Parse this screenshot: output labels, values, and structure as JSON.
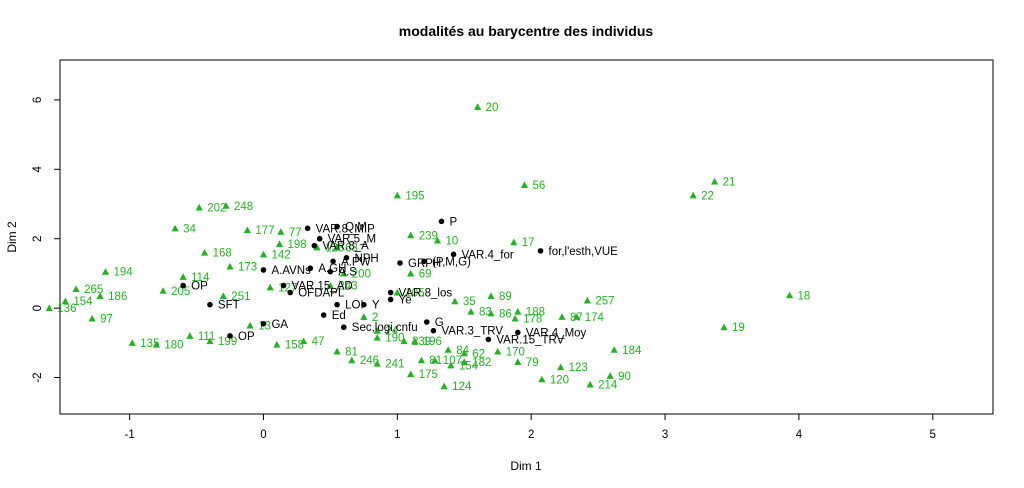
{
  "chart_data": {
    "type": "scatter",
    "title": "modalités au barycentre des individus",
    "xlabel": "Dim 1",
    "ylabel": "Dim 2",
    "xlim": [
      -1.52,
      5.45
    ],
    "ylim": [
      -3.05,
      7.15
    ],
    "xticks": [
      -1,
      0,
      1,
      2,
      3,
      4,
      5
    ],
    "yticks": [
      -2,
      0,
      2,
      4,
      6
    ],
    "grid": false,
    "colors": {
      "individuals": "#22b322",
      "modalities": "#000000"
    },
    "series": [
      {
        "marker": "triangle",
        "points": [
          {
            "x": 1.6,
            "y": 5.8,
            "label": "20"
          },
          {
            "x": 3.37,
            "y": 3.65,
            "label": "21"
          },
          {
            "x": 3.21,
            "y": 3.25,
            "label": "22"
          },
          {
            "x": 1.95,
            "y": 3.55,
            "label": "56"
          },
          {
            "x": 1.0,
            "y": 3.25,
            "label": "195"
          },
          {
            "x": 3.93,
            "y": 0.37,
            "label": "18"
          },
          {
            "x": 3.44,
            "y": -0.55,
            "label": "19"
          },
          {
            "x": 2.42,
            "y": 0.22,
            "label": "257"
          },
          {
            "x": 2.62,
            "y": -1.2,
            "label": "184"
          },
          {
            "x": 2.59,
            "y": -1.95,
            "label": "90"
          },
          {
            "x": 2.44,
            "y": -2.2,
            "label": "214"
          },
          {
            "x": 2.08,
            "y": -2.05,
            "label": "120"
          },
          {
            "x": 2.22,
            "y": -1.7,
            "label": "123"
          },
          {
            "x": 1.35,
            "y": -2.25,
            "label": "124"
          },
          {
            "x": 1.9,
            "y": -1.55,
            "label": "79"
          },
          {
            "x": 2.23,
            "y": -0.25,
            "label": "87"
          },
          {
            "x": 2.34,
            "y": -0.25,
            "label": "174"
          },
          {
            "x": 1.88,
            "y": -0.3,
            "label": "178"
          },
          {
            "x": 1.9,
            "y": -0.1,
            "label": "188"
          },
          {
            "x": 1.7,
            "y": -0.15,
            "label": "86"
          },
          {
            "x": 1.7,
            "y": 0.35,
            "label": "89"
          },
          {
            "x": 1.43,
            "y": 0.2,
            "label": "35"
          },
          {
            "x": 1.55,
            "y": -0.1,
            "label": "83"
          },
          {
            "x": 1.87,
            "y": 1.9,
            "label": "17"
          },
          {
            "x": 1.3,
            "y": 1.95,
            "label": "10"
          },
          {
            "x": 1.1,
            "y": 2.1,
            "label": "239"
          },
          {
            "x": -0.48,
            "y": 2.9,
            "label": "202"
          },
          {
            "x": -0.28,
            "y": 2.95,
            "label": "248"
          },
          {
            "x": -0.66,
            "y": 2.3,
            "label": "34"
          },
          {
            "x": -0.12,
            "y": 2.25,
            "label": "177"
          },
          {
            "x": 0.13,
            "y": 2.2,
            "label": "77"
          },
          {
            "x": 0.12,
            "y": 1.85,
            "label": "198"
          },
          {
            "x": -0.44,
            "y": 1.6,
            "label": "168"
          },
          {
            "x": 0.0,
            "y": 1.55,
            "label": "142"
          },
          {
            "x": -1.18,
            "y": 1.05,
            "label": "194"
          },
          {
            "x": -0.25,
            "y": 1.2,
            "label": "173"
          },
          {
            "x": -1.4,
            "y": 0.55,
            "label": "265"
          },
          {
            "x": -1.48,
            "y": 0.2,
            "label": "154"
          },
          {
            "x": -1.22,
            "y": 0.35,
            "label": "186"
          },
          {
            "x": -1.28,
            "y": -0.3,
            "label": "97"
          },
          {
            "x": -1.6,
            "y": 0.0,
            "label": "136"
          },
          {
            "x": -0.98,
            "y": -1.0,
            "label": "135"
          },
          {
            "x": -0.8,
            "y": -1.05,
            "label": "180"
          },
          {
            "x": -0.4,
            "y": -0.95,
            "label": "199"
          },
          {
            "x": 0.1,
            "y": -1.05,
            "label": "158"
          },
          {
            "x": 0.3,
            "y": -0.95,
            "label": "47"
          },
          {
            "x": 0.55,
            "y": -1.25,
            "label": "81"
          },
          {
            "x": 0.66,
            "y": -1.5,
            "label": "246"
          },
          {
            "x": 0.85,
            "y": -1.6,
            "label": "241"
          },
          {
            "x": 0.85,
            "y": -0.85,
            "label": "190"
          },
          {
            "x": 1.1,
            "y": -1.9,
            "label": "175"
          },
          {
            "x": 1.18,
            "y": -1.5,
            "label": "81"
          },
          {
            "x": 1.28,
            "y": -1.5,
            "label": "107"
          },
          {
            "x": 1.4,
            "y": -1.65,
            "label": "154"
          },
          {
            "x": 1.5,
            "y": -1.55,
            "label": "182"
          },
          {
            "x": 1.38,
            "y": -1.2,
            "label": "84"
          },
          {
            "x": 1.5,
            "y": -1.3,
            "label": "62"
          },
          {
            "x": 1.75,
            "y": -1.25,
            "label": "170"
          },
          {
            "x": 1.05,
            "y": -0.95,
            "label": "239"
          },
          {
            "x": 1.13,
            "y": -0.95,
            "label": "196"
          },
          {
            "x": 1.0,
            "y": 0.45,
            "label": "105"
          },
          {
            "x": 1.1,
            "y": 1.0,
            "label": "69"
          },
          {
            "x": 0.5,
            "y": 0.65,
            "label": "243"
          },
          {
            "x": 0.75,
            "y": -0.25,
            "label": "2"
          },
          {
            "x": 0.85,
            "y": -0.65,
            "label": "24"
          },
          {
            "x": 0.4,
            "y": 1.75,
            "label": "128"
          },
          {
            "x": 0.55,
            "y": 1.75,
            "label": "63"
          },
          {
            "x": 0.05,
            "y": 0.6,
            "label": "127"
          },
          {
            "x": 0.6,
            "y": 1.0,
            "label": "200"
          },
          {
            "x": -0.6,
            "y": 0.9,
            "label": "114"
          },
          {
            "x": -0.75,
            "y": 0.5,
            "label": "205"
          },
          {
            "x": -0.3,
            "y": 0.35,
            "label": "251"
          },
          {
            "x": -0.1,
            "y": -0.5,
            "label": "13"
          },
          {
            "x": -0.55,
            "y": -0.8,
            "label": "111"
          }
        ]
      },
      {
        "marker": "dot",
        "points": [
          {
            "x": 1.33,
            "y": 2.5,
            "label": "P"
          },
          {
            "x": 0.33,
            "y": 2.3,
            "label": "VAR.8_MIP"
          },
          {
            "x": 0.55,
            "y": 2.35,
            "label": "Q.M"
          },
          {
            "x": 0.42,
            "y": 2.0,
            "label": "VAR.5_M"
          },
          {
            "x": 0.38,
            "y": 1.8,
            "label": "VAR.8_A"
          },
          {
            "x": 0.62,
            "y": 1.45,
            "label": "NPH"
          },
          {
            "x": 0.52,
            "y": 1.35,
            "label": "A.PW"
          },
          {
            "x": 1.02,
            "y": 1.3,
            "label": "GRPH"
          },
          {
            "x": 1.2,
            "y": 1.35,
            "label": "(P,M,G)"
          },
          {
            "x": 1.42,
            "y": 1.55,
            "label": "VAR.4_for"
          },
          {
            "x": 2.07,
            "y": 1.65,
            "label": "for,l'esth,VUE"
          },
          {
            "x": 0.0,
            "y": 1.1,
            "label": "A.AVNs"
          },
          {
            "x": 0.35,
            "y": 1.15,
            "label": "A.GH"
          },
          {
            "x": 0.5,
            "y": 1.05,
            "label": "A.S"
          },
          {
            "x": 0.15,
            "y": 0.65,
            "label": "VAR.15_AD"
          },
          {
            "x": 0.95,
            "y": 0.45,
            "label": "VAR.8_los"
          },
          {
            "x": 0.95,
            "y": 0.25,
            "label": "Ye"
          },
          {
            "x": 0.75,
            "y": 0.1,
            "label": "Y"
          },
          {
            "x": 0.55,
            "y": 0.1,
            "label": "LOI"
          },
          {
            "x": 0.45,
            "y": -0.2,
            "label": "Ed"
          },
          {
            "x": 0.6,
            "y": -0.55,
            "label": "Sec,logi,cnfu"
          },
          {
            "x": 1.22,
            "y": -0.4,
            "label": "G"
          },
          {
            "x": 1.27,
            "y": -0.65,
            "label": "VAR.3_TRV"
          },
          {
            "x": 1.9,
            "y": -0.7,
            "label": "VAR.4_Moy"
          },
          {
            "x": 1.68,
            "y": -0.9,
            "label": "VAR.15_TRV"
          },
          {
            "x": 0.2,
            "y": 0.45,
            "label": "OFDAPL"
          },
          {
            "x": -0.6,
            "y": 0.65,
            "label": "OP"
          },
          {
            "x": -0.25,
            "y": -0.8,
            "label": "OP"
          },
          {
            "x": -0.4,
            "y": 0.1,
            "label": "SFT"
          },
          {
            "x": 0.0,
            "y": -0.45,
            "label": "GA"
          }
        ]
      }
    ]
  }
}
